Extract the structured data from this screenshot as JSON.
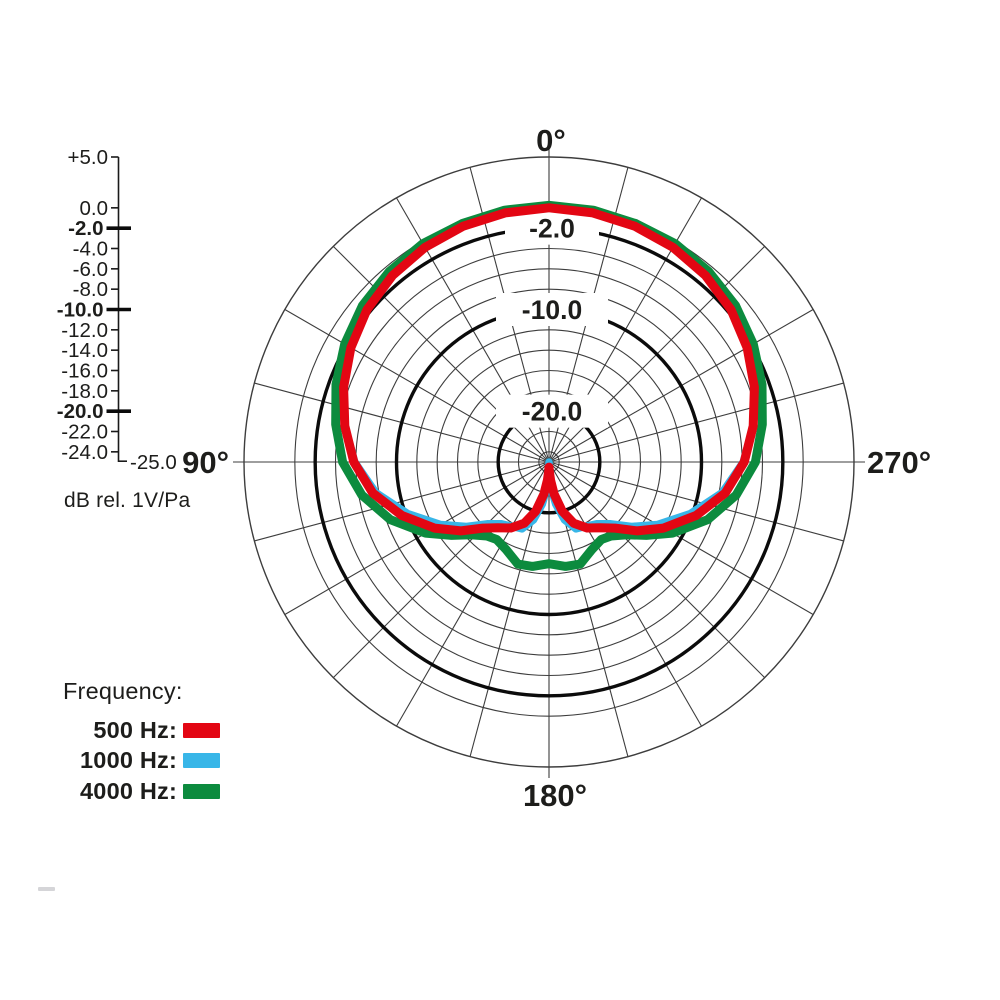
{
  "chart_data": {
    "type": "line",
    "polar": true,
    "title": "",
    "radial_axis": {
      "label": "dB rel. 1V/Pa",
      "min": -25,
      "max": 5,
      "ticks": [
        {
          "text": "+5.0",
          "db": 5,
          "bold": false
        },
        {
          "text": "0.0",
          "db": 0,
          "bold": false
        },
        {
          "text": "-2.0",
          "db": -2,
          "bold": true
        },
        {
          "text": "-4.0",
          "db": -4,
          "bold": false
        },
        {
          "text": "-6.0",
          "db": -6,
          "bold": false
        },
        {
          "text": "-8.0",
          "db": -8,
          "bold": false
        },
        {
          "text": "-10.0",
          "db": -10,
          "bold": true
        },
        {
          "text": "-12.0",
          "db": -12,
          "bold": false
        },
        {
          "text": "-14.0",
          "db": -14,
          "bold": false
        },
        {
          "text": "-16.0",
          "db": -16,
          "bold": false
        },
        {
          "text": "-18.0",
          "db": -18,
          "bold": false
        },
        {
          "text": "-20.0",
          "db": -20,
          "bold": true
        },
        {
          "text": "-22.0",
          "db": -22,
          "bold": false
        },
        {
          "text": "-24.0",
          "db": -24,
          "bold": false
        }
      ],
      "end_tick": {
        "text": "-25.0",
        "db": -25
      },
      "ring_labels": [
        {
          "text": "-2.0",
          "db": -2
        },
        {
          "text": "-10.0",
          "db": -10
        },
        {
          "text": "-20.0",
          "db": -20
        }
      ]
    },
    "grid": {
      "spoke_step_deg": 15,
      "rings_db": [
        {
          "db": 5,
          "bold": false
        },
        {
          "db": 0,
          "bold": false
        },
        {
          "db": -2,
          "bold": true
        },
        {
          "db": -4,
          "bold": false
        },
        {
          "db": -6,
          "bold": false
        },
        {
          "db": -8,
          "bold": false
        },
        {
          "db": -10,
          "bold": true
        },
        {
          "db": -12,
          "bold": false
        },
        {
          "db": -14,
          "bold": false
        },
        {
          "db": -16,
          "bold": false
        },
        {
          "db": -18,
          "bold": false
        },
        {
          "db": -20,
          "bold": true
        },
        {
          "db": -22,
          "bold": false
        },
        {
          "db": -24,
          "bold": false
        }
      ]
    },
    "angle_labels": [
      {
        "angle": 0,
        "text": "0°"
      },
      {
        "angle": 90,
        "text": "90°"
      },
      {
        "angle": 180,
        "text": "180°"
      },
      {
        "angle": 270,
        "text": "270°"
      }
    ],
    "legend": {
      "title": "Frequency:",
      "entries": [
        {
          "label": "500 Hz:",
          "color": "#e30613"
        },
        {
          "label": "1000 Hz:",
          "color": "#38b6e8"
        },
        {
          "label": "4000 Hz:",
          "color": "#0c8b3e"
        }
      ]
    },
    "series": [
      {
        "name": "500 Hz",
        "color": "#e30613",
        "points_half_deg_db": [
          [
            0,
            0.0
          ],
          [
            10,
            -0.12
          ],
          [
            20,
            -0.32
          ],
          [
            30,
            -0.62
          ],
          [
            40,
            -1.05
          ],
          [
            50,
            -1.65
          ],
          [
            60,
            -2.5
          ],
          [
            70,
            -3.5
          ],
          [
            80,
            -4.6
          ],
          [
            90,
            -5.8
          ],
          [
            100,
            -7.4
          ],
          [
            110,
            -9.6
          ],
          [
            120,
            -12.0
          ],
          [
            128,
            -14.0
          ],
          [
            135,
            -15.8
          ],
          [
            142,
            -16.8
          ],
          [
            150,
            -17.5
          ],
          [
            158,
            -18.5
          ],
          [
            165,
            -20.0
          ],
          [
            171,
            -21.8
          ],
          [
            175,
            -23.2
          ],
          [
            178,
            -24.1
          ],
          [
            180,
            -24.5
          ]
        ]
      },
      {
        "name": "1000 Hz",
        "color": "#38b6e8",
        "points_half_deg_db": [
          [
            0,
            0.0
          ],
          [
            10,
            -0.12
          ],
          [
            20,
            -0.32
          ],
          [
            30,
            -0.62
          ],
          [
            40,
            -1.05
          ],
          [
            50,
            -1.65
          ],
          [
            60,
            -2.5
          ],
          [
            70,
            -3.5
          ],
          [
            80,
            -4.6
          ],
          [
            90,
            -5.9
          ],
          [
            100,
            -7.7
          ],
          [
            110,
            -10.2
          ],
          [
            120,
            -12.7
          ],
          [
            128,
            -14.7
          ],
          [
            135,
            -16.4
          ],
          [
            142,
            -17.3
          ],
          [
            150,
            -17.7
          ],
          [
            158,
            -17.9
          ],
          [
            165,
            -19.1
          ],
          [
            171,
            -20.8
          ],
          [
            175,
            -22.3
          ],
          [
            178,
            -23.6
          ],
          [
            180,
            -25.0
          ]
        ]
      },
      {
        "name": "4000 Hz",
        "color": "#0c8b3e",
        "points_half_deg_db": [
          [
            0,
            0.25
          ],
          [
            10,
            0.15
          ],
          [
            20,
            -0.05
          ],
          [
            30,
            -0.2
          ],
          [
            40,
            -0.55
          ],
          [
            50,
            -1.05
          ],
          [
            60,
            -1.8
          ],
          [
            70,
            -2.7
          ],
          [
            80,
            -3.7
          ],
          [
            90,
            -4.7
          ],
          [
            100,
            -6.3
          ],
          [
            110,
            -8.4
          ],
          [
            120,
            -11.0
          ],
          [
            127,
            -13.0
          ],
          [
            133,
            -14.5
          ],
          [
            140,
            -15.5
          ],
          [
            146,
            -15.8
          ],
          [
            154,
            -15.4
          ],
          [
            163,
            -14.5
          ],
          [
            171,
            -14.6
          ],
          [
            180,
            -15.0
          ]
        ]
      }
    ]
  }
}
